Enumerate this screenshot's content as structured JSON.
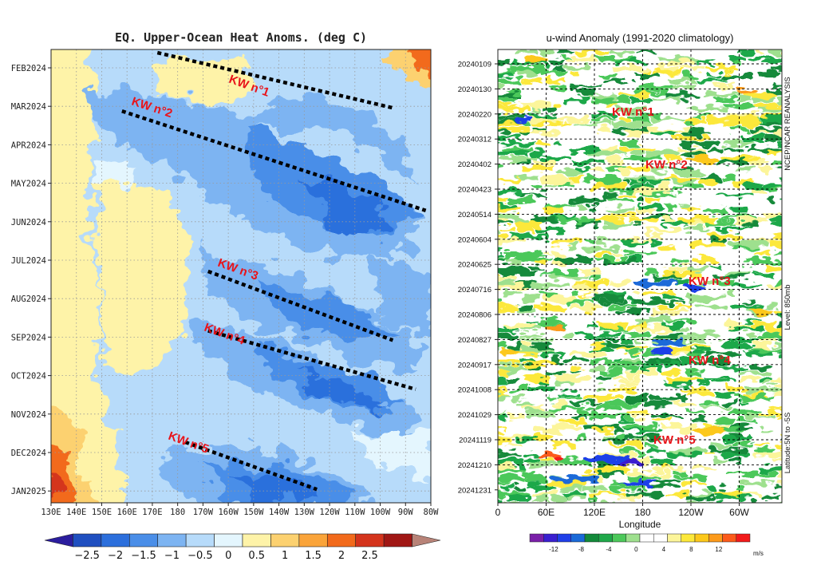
{
  "chart_data": [
    {
      "type": "heatmap",
      "title": "EQ. Upper-Ocean Heat Anoms. (deg C)",
      "x_ticks": [
        "130E",
        "140E",
        "150E",
        "160E",
        "170E",
        "180",
        "170W",
        "160W",
        "150W",
        "140W",
        "130W",
        "120W",
        "110W",
        "100W",
        "90W",
        "80W"
      ],
      "y_ticks": [
        "FEB2024",
        "MAR2024",
        "APR2024",
        "MAY2024",
        "JUN2024",
        "JUL2024",
        "AUG2024",
        "SEP2024",
        "OCT2024",
        "NOV2024",
        "DEC2024",
        "JAN2025"
      ],
      "colorbar": {
        "ticks": [
          "−2.5",
          "−2",
          "−1.5",
          "−1",
          "−0.5",
          "0",
          "0.5",
          "1",
          "1.5",
          "2",
          "2.5"
        ],
        "colors": [
          "#2b1d9e",
          "#1f4fc0",
          "#2c6fdc",
          "#4a8ee8",
          "#7db4f2",
          "#b7dbfa",
          "#e4f6fe",
          "#fef3a8",
          "#fcd170",
          "#faa43a",
          "#f26a1b",
          "#d4341c",
          "#a01714",
          "#b88378"
        ]
      },
      "annotations": [
        {
          "label": "KW n°1",
          "line": {
            "x": [
              "172E",
              "95W"
            ],
            "y": [
              "FEB2024",
              "MAR2024"
            ]
          }
        },
        {
          "label": "KW n°2",
          "line": {
            "x": [
              "158E",
              "82W"
            ],
            "y": [
              "MAR2024",
              "JUN2024"
            ]
          }
        },
        {
          "label": "KW n°3",
          "line": {
            "x": [
              "168W",
              "95W"
            ],
            "y": [
              "JUL2024",
              "SEP2024"
            ]
          }
        },
        {
          "label": "KW n°4",
          "line": {
            "x": [
              "168W",
              "86W"
            ],
            "y": [
              "SEP2024",
              "NOV2024"
            ]
          }
        },
        {
          "label": "KW n°5",
          "line": {
            "x": [
              "177W",
              "125W"
            ],
            "y": [
              "DEC2024",
              "JAN2025"
            ]
          }
        }
      ]
    },
    {
      "type": "heatmap",
      "title": "u-wind Anomaly  (1991-2020 climatology)",
      "xlabel": "Longitude",
      "x_ticks": [
        "0",
        "60E",
        "120E",
        "180",
        "120W",
        "60W"
      ],
      "y_ticks": [
        "20240109",
        "20240130",
        "20240220",
        "20240312",
        "20240402",
        "20240423",
        "20240514",
        "20240604",
        "20240625",
        "20240716",
        "20240806",
        "20240827",
        "20240917",
        "20241008",
        "20241029",
        "20241119",
        "20241210",
        "20241231"
      ],
      "side_labels": [
        "NCEP/NCAR REANALYSIS",
        "Level: 850mb",
        "Latitude:5N to -5S"
      ],
      "colorbar": {
        "ticks": [
          "-12",
          "-8",
          "-4",
          "0",
          "4",
          "8",
          "12"
        ],
        "unit": "m/s",
        "colors": [
          "#7a1fa8",
          "#3a1fd0",
          "#1f3fe8",
          "#1a6ad8",
          "#138a3a",
          "#1fa84a",
          "#4cc85a",
          "#9ee08e",
          "#ffffff",
          "#ffffff",
          "#fcf59a",
          "#fce83a",
          "#fcc81a",
          "#fc9a1a",
          "#fc5a1a",
          "#f21a1a"
        ]
      },
      "annotations": [
        {
          "label": "KW n°1"
        },
        {
          "label": "KW n°2"
        },
        {
          "label": "KW n°3"
        },
        {
          "label": "KW n°4"
        },
        {
          "label": "KW n°5"
        }
      ]
    }
  ]
}
